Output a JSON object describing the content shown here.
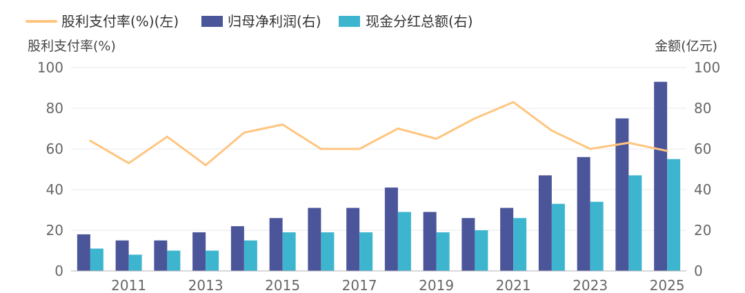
{
  "chart_data": {
    "type": "bar",
    "legend": {
      "position": "top-left",
      "entries": [
        {
          "key": "payout",
          "label": "股利支付率(%)(左)",
          "color": "#FFC57F",
          "shape": "line"
        },
        {
          "key": "profit",
          "label": "归母净利润(右)",
          "color": "#4B559A",
          "shape": "bar"
        },
        {
          "key": "dividend",
          "label": "现金分红总额(右)",
          "color": "#3EB5CF",
          "shape": "bar"
        }
      ]
    },
    "ylabel_left": "股利支付率(%)",
    "ylabel_right": "金额(亿元)",
    "ylim_left": [
      0,
      100
    ],
    "ylim_right": [
      0,
      100
    ],
    "yticks": [
      0,
      20,
      40,
      60,
      80,
      100
    ],
    "x": [
      2010,
      2011,
      2012,
      2013,
      2014,
      2015,
      2016,
      2017,
      2018,
      2019,
      2020,
      2021,
      2022,
      2023,
      2024,
      2025
    ],
    "xtick_labels": [
      "2011",
      "2013",
      "2015",
      "2017",
      "2019",
      "2021",
      "2023",
      "2025"
    ],
    "series": [
      {
        "key": "profit",
        "name": "归母净利润(右)",
        "type": "bar",
        "axis": "right",
        "values": [
          18,
          15,
          15,
          19,
          22,
          26,
          31,
          31,
          41,
          29,
          26,
          31,
          47,
          56,
          75,
          93
        ]
      },
      {
        "key": "dividend",
        "name": "现金分红总额(右)",
        "type": "bar",
        "axis": "right",
        "values": [
          11,
          8,
          10,
          10,
          15,
          19,
          19,
          19,
          29,
          19,
          20,
          26,
          33,
          34,
          47,
          55
        ]
      },
      {
        "key": "payout",
        "name": "股利支付率(%)(左)",
        "type": "line",
        "axis": "left",
        "values": [
          64,
          53,
          66,
          52,
          68,
          72,
          60,
          60,
          70,
          65,
          75,
          83,
          69,
          60,
          63,
          59
        ]
      }
    ]
  }
}
